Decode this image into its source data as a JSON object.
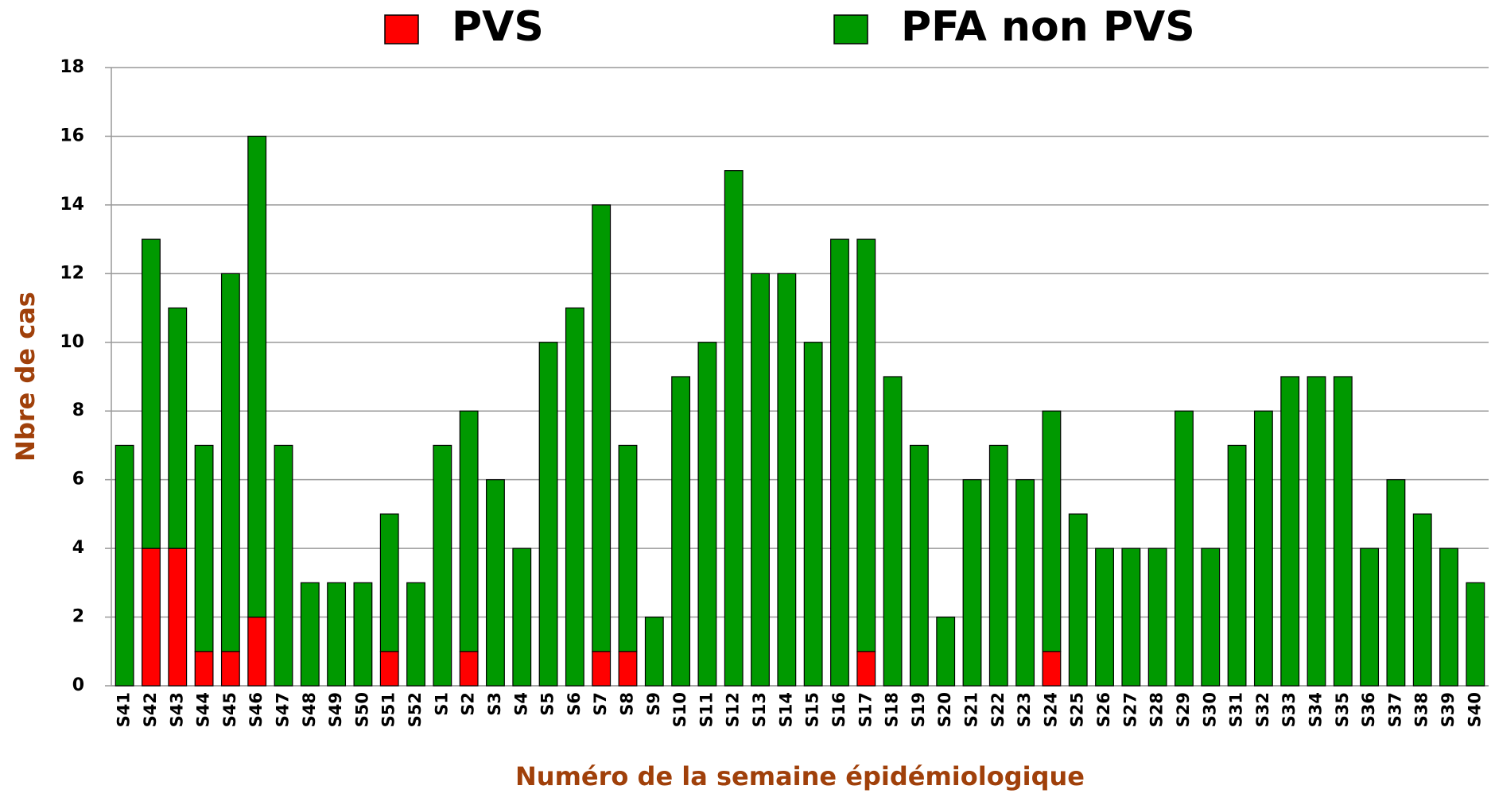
{
  "chart_data": {
    "type": "stacked_bar",
    "x_label": "Numéro de la semaine épidémiologique",
    "y_label": "Nbre de cas",
    "categories": [
      "S41",
      "S42",
      "S43",
      "S44",
      "S45",
      "S46",
      "S47",
      "S48",
      "S49",
      "S50",
      "S51",
      "S52",
      "S1",
      "S2",
      "S3",
      "S4",
      "S5",
      "S6",
      "S7",
      "S8",
      "S9",
      "S10",
      "S11",
      "S12",
      "S13",
      "S14",
      "S15",
      "S16",
      "S17",
      "S18",
      "S19",
      "S20",
      "S21",
      "S22",
      "S23",
      "S24",
      "S25",
      "S26",
      "S27",
      "S28",
      "S29",
      "S30",
      "S31",
      "S32",
      "S33",
      "S34",
      "S35",
      "S36",
      "S37",
      "S38",
      "S39",
      "S40"
    ],
    "series": [
      {
        "name": "PVS",
        "color": "#ff0000",
        "values": [
          0,
          4,
          4,
          1,
          1,
          2,
          0,
          0,
          0,
          0,
          1,
          0,
          0,
          1,
          0,
          0,
          0,
          0,
          1,
          1,
          0,
          0,
          0,
          0,
          0,
          0,
          0,
          0,
          1,
          0,
          0,
          0,
          0,
          0,
          0,
          1,
          0,
          0,
          0,
          0,
          0,
          0,
          0,
          0,
          0,
          0,
          0,
          0,
          0,
          0,
          0,
          0
        ]
      },
      {
        "name": "PFA non PVS",
        "color": "#009900",
        "values": [
          7,
          9,
          7,
          6,
          11,
          14,
          7,
          3,
          3,
          3,
          4,
          3,
          7,
          7,
          6,
          4,
          10,
          11,
          13,
          6,
          2,
          9,
          10,
          15,
          12,
          12,
          10,
          13,
          12,
          9,
          7,
          2,
          6,
          7,
          6,
          7,
          5,
          4,
          4,
          4,
          8,
          4,
          7,
          8,
          9,
          9,
          9,
          4,
          6,
          5,
          4,
          3
        ]
      }
    ],
    "ylim": [
      0,
      18
    ],
    "yticks": [
      0,
      2,
      4,
      6,
      8,
      10,
      12,
      14,
      16,
      18
    ],
    "grid": true
  }
}
